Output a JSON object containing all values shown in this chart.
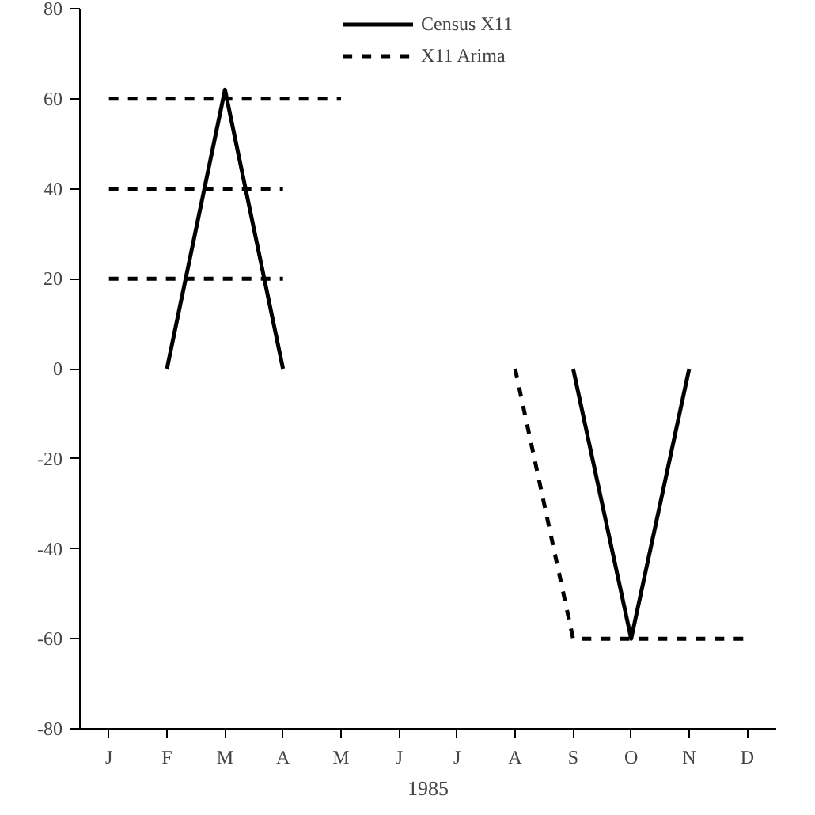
{
  "chart_data": {
    "type": "line",
    "xlabel": "1985",
    "categories": [
      "J",
      "F",
      "M",
      "A",
      "M",
      "J",
      "J",
      "A",
      "S",
      "O",
      "N",
      "D"
    ],
    "ylim": [
      -80,
      80
    ],
    "yticks": [
      -80,
      -60,
      -40,
      -20,
      0,
      20,
      40,
      60,
      80
    ],
    "series": [
      {
        "name": "Census X11",
        "color": "#000000",
        "line_style": "solid",
        "values": [
          null,
          0,
          62,
          0,
          null,
          null,
          null,
          null,
          0,
          -60,
          0,
          null
        ]
      },
      {
        "name": "X11 Arima",
        "color": "#000000",
        "line_style": "dashed",
        "values": [
          60,
          60,
          60,
          60,
          60,
          null,
          null,
          0,
          -60,
          -60,
          -60,
          -60
        ]
      },
      {
        "color": "#000000",
        "line_style": "dashed",
        "values": [
          40,
          40,
          40,
          40,
          null,
          null,
          null,
          null,
          null,
          null,
          null,
          null
        ]
      },
      {
        "color": "#000000",
        "line_style": "dashed",
        "values": [
          20,
          20,
          20,
          20,
          null,
          null,
          null,
          null,
          null,
          null,
          null,
          null
        ]
      }
    ],
    "legend": "top",
    "grid": false
  }
}
